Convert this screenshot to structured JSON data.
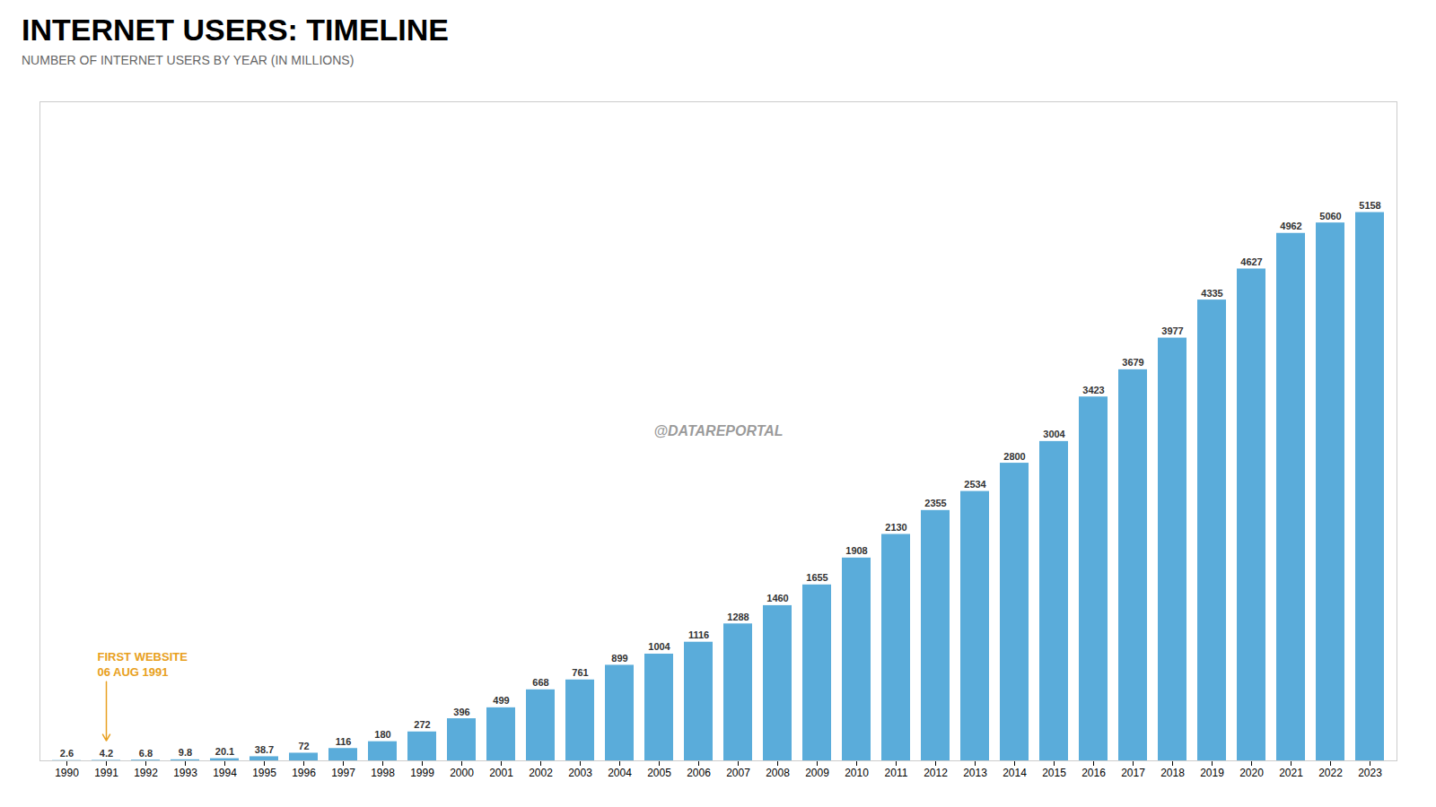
{
  "chart_data": {
    "type": "bar",
    "title": "INTERNET USERS: TIMELINE",
    "subtitle": "NUMBER OF INTERNET USERS BY YEAR (IN MILLIONS)",
    "categories": [
      "1990",
      "1991",
      "1992",
      "1993",
      "1994",
      "1995",
      "1996",
      "1997",
      "1998",
      "1999",
      "2000",
      "2001",
      "2002",
      "2003",
      "2004",
      "2005",
      "2006",
      "2007",
      "2008",
      "2009",
      "2010",
      "2011",
      "2012",
      "2013",
      "2014",
      "2015",
      "2016",
      "2017",
      "2018",
      "2019",
      "2020",
      "2021",
      "2022",
      "2023"
    ],
    "values": [
      2.6,
      4.2,
      6.8,
      9.8,
      20.1,
      38.7,
      72,
      116,
      180,
      272,
      396,
      499,
      668,
      761,
      899,
      1004,
      1116,
      1288,
      1460,
      1655,
      1908,
      2130,
      2355,
      2534,
      2800,
      3004,
      3423,
      3679,
      3977,
      4335,
      4627,
      4962,
      5060,
      5158
    ],
    "color": "#5AACDA",
    "ylim": [
      0,
      6200
    ],
    "data_labels": true,
    "tick_labels": "x",
    "grid": false,
    "annotations": [
      {
        "text": "FIRST WEBSITE\n06 AUG 1991",
        "x": "1991",
        "color": "#e8a020"
      },
      {
        "text": "@DATAREPORTAL",
        "color": "#555555"
      }
    ]
  }
}
